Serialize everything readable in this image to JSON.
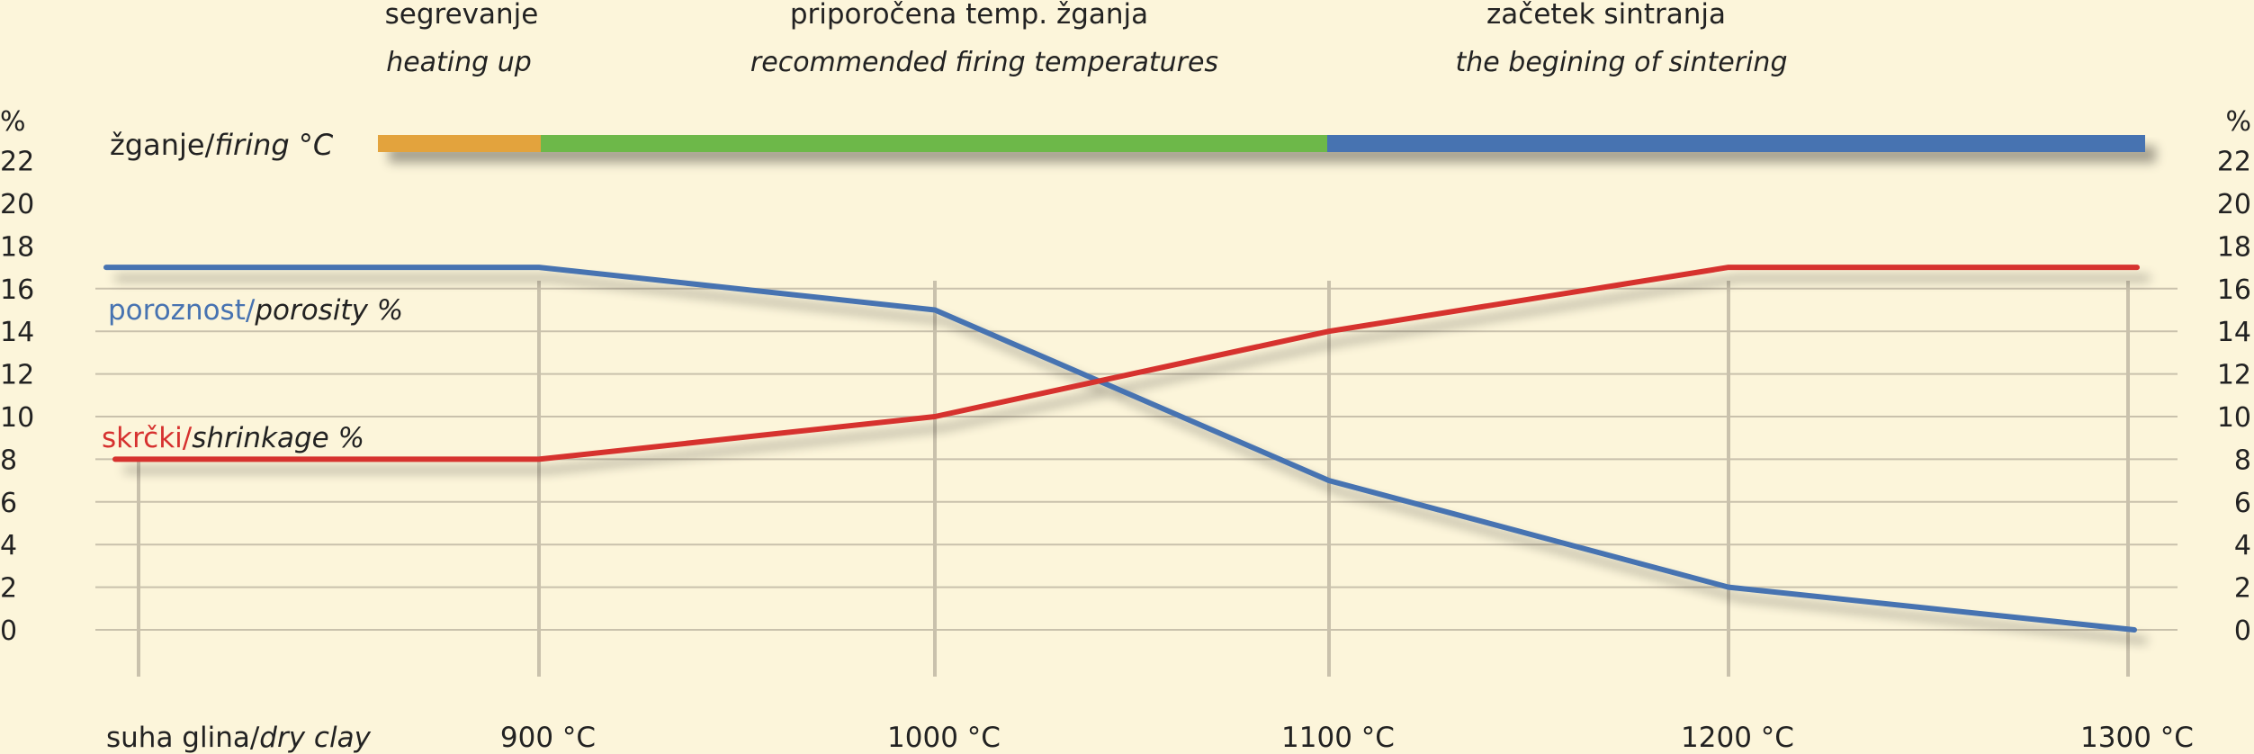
{
  "phases": [
    {
      "title": "segrevanje",
      "subtitle": "heating up",
      "from": "dry",
      "to": 900,
      "color": "#e3a33d"
    },
    {
      "title": "priporočena temp. žganja",
      "subtitle": "recommended firing temperatures",
      "from": 900,
      "to": 1100,
      "color": "#6db84a"
    },
    {
      "title": "začetek sintranja",
      "subtitle": "the begining of sintering",
      "from": 1100,
      "to": 1300,
      "color": "#4773b1"
    }
  ],
  "firing_bar_label": {
    "sl": "žganje/",
    "en": "firing °C"
  },
  "chart_data": {
    "type": "line",
    "x": [
      "suha glina/dry clay",
      "900 °C",
      "1000 °C",
      "1100 °C",
      "1200 °C",
      "1300 °C"
    ],
    "x_labels": [
      {
        "sl": "suha glina/",
        "en": "dry clay"
      },
      {
        "sl": "900 °C",
        "en": ""
      },
      {
        "sl": "1000 °C",
        "en": ""
      },
      {
        "sl": "1100 °C",
        "en": ""
      },
      {
        "sl": "1200 °C",
        "en": ""
      },
      {
        "sl": "1300 °C",
        "en": ""
      }
    ],
    "ylabel": "%",
    "yticks": [
      0,
      2,
      4,
      6,
      8,
      10,
      12,
      14,
      16,
      18,
      20,
      22
    ],
    "ylim": [
      0,
      22
    ],
    "grid": true,
    "series": [
      {
        "name": "poroznost/porosity %",
        "label_sl": "poroznost/",
        "label_en": "porosity %",
        "color": "#4773b1",
        "values": [
          17,
          17,
          15,
          7,
          2,
          0
        ]
      },
      {
        "name": "skrčki/shrinkage %",
        "label_sl": "skrčki/",
        "label_en": "shrinkage %",
        "color": "#d6312f",
        "values": [
          8,
          8,
          10,
          14,
          17,
          17
        ]
      }
    ]
  }
}
